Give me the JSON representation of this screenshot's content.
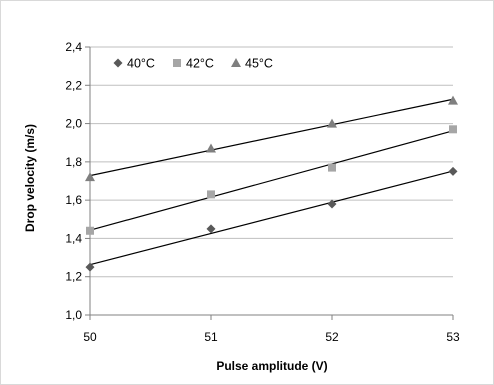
{
  "chart_data": {
    "type": "scatter",
    "title": "",
    "xlabel": "Pulse amplitude (V)",
    "ylabel": "Drop velocity (m/s)",
    "xlim": [
      50,
      53
    ],
    "ylim": [
      1.0,
      2.4
    ],
    "x_ticks": [
      "50",
      "51",
      "52",
      "53"
    ],
    "y_ticks": [
      "1,0",
      "1,2",
      "1,4",
      "1,6",
      "1,8",
      "2,0",
      "2,2",
      "2,4"
    ],
    "grid": "horizontal",
    "legend_position": "top-left",
    "x": [
      50,
      51,
      52,
      53
    ],
    "series": [
      {
        "name": "40°C",
        "marker": "diamond",
        "color": "#595959",
        "values": [
          1.25,
          1.45,
          1.58,
          1.75
        ],
        "trendline": "linear"
      },
      {
        "name": "42°C",
        "marker": "square",
        "color": "#a6a6a6",
        "values": [
          1.44,
          1.63,
          1.77,
          1.97
        ],
        "trendline": "linear"
      },
      {
        "name": "45°C",
        "marker": "triangle",
        "color": "#7f7f7f",
        "values": [
          1.72,
          1.87,
          2.0,
          2.12
        ],
        "trendline": "linear"
      }
    ]
  }
}
